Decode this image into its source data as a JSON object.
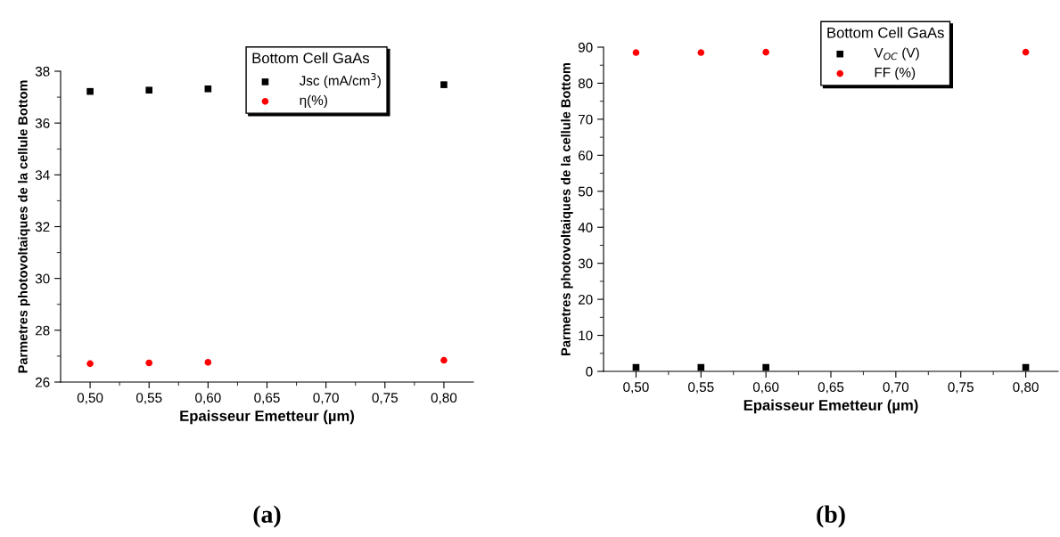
{
  "chart_data": [
    {
      "type": "scatter",
      "xlabel": "Epaisseur Emetteur (µm)",
      "ylabel": "Parmetres photovoltaiques de la cellule Bottom",
      "legend_title": "Bottom Cell GaAs",
      "legend": "top",
      "annotations": [
        "(a)"
      ],
      "x": [
        0.5,
        0.55,
        0.6,
        0.8
      ],
      "series": [
        {
          "name": "Jsc (mA/cm$^{3}$)",
          "color": "#000000",
          "marker": "square",
          "values": [
            37.22,
            37.27,
            37.32,
            37.48
          ]
        },
        {
          "name": "η(%)",
          "color": "#ff0000",
          "marker": "circle",
          "values": [
            26.71,
            26.74,
            26.76,
            26.84
          ]
        }
      ],
      "xlim": [
        0.475,
        0.825
      ],
      "xticks": [
        {
          "value": 0.5,
          "label": "0,50"
        },
        {
          "value": 0.525,
          "label": null
        },
        {
          "value": 0.55,
          "label": "0,55"
        },
        {
          "value": 0.575,
          "label": null
        },
        {
          "value": 0.6,
          "label": "0,60"
        },
        {
          "value": 0.625,
          "label": null
        },
        {
          "value": 0.65,
          "label": "0,65"
        },
        {
          "value": 0.675,
          "label": null
        },
        {
          "value": 0.7,
          "label": "0,70"
        },
        {
          "value": 0.725,
          "label": null
        },
        {
          "value": 0.75,
          "label": "0,75"
        },
        {
          "value": 0.775,
          "label": null
        },
        {
          "value": 0.8,
          "label": "0,80"
        }
      ],
      "ylim": [
        26,
        38
      ],
      "yticks": [
        26,
        {
          "value": 27,
          "label": null
        },
        28,
        {
          "value": 29,
          "label": null
        },
        30,
        {
          "value": 31,
          "label": null
        },
        32,
        {
          "value": 33,
          "label": null
        },
        34,
        {
          "value": 35,
          "label": null
        },
        36,
        {
          "value": 37,
          "label": null
        },
        38
      ]
    },
    {
      "type": "scatter",
      "xlabel": "Epaisseur Emetteur (µm)",
      "ylabel": "Parmetres photovoltaiques de la cellule Bottom",
      "legend_title": "Bottom Cell GaAs",
      "legend": "top",
      "annotations": [
        "(b)"
      ],
      "x": [
        0.5,
        0.55,
        0.6,
        0.8
      ],
      "series": [
        {
          "name": "V$_{OC}$ (V)",
          "color": "#000000",
          "marker": "square",
          "values": [
            1.1,
            1.1,
            1.1,
            1.1
          ]
        },
        {
          "name": "FF (%)",
          "color": "#ff0000",
          "marker": "circle",
          "values": [
            88.5,
            88.5,
            88.6,
            88.6
          ]
        }
      ],
      "xlim": [
        0.475,
        0.825
      ],
      "xticks": [
        {
          "value": 0.5,
          "label": "0,50"
        },
        {
          "value": 0.525,
          "label": null
        },
        {
          "value": 0.55,
          "label": "0,55"
        },
        {
          "value": 0.575,
          "label": null
        },
        {
          "value": 0.6,
          "label": "0,60"
        },
        {
          "value": 0.625,
          "label": null
        },
        {
          "value": 0.65,
          "label": "0,65"
        },
        {
          "value": 0.675,
          "label": null
        },
        {
          "value": 0.7,
          "label": "0,70"
        },
        {
          "value": 0.725,
          "label": null
        },
        {
          "value": 0.75,
          "label": "0,75"
        },
        {
          "value": 0.775,
          "label": null
        },
        {
          "value": 0.8,
          "label": "0,80"
        }
      ],
      "ylim": [
        0,
        90
      ],
      "yticks": [
        0,
        {
          "value": 5,
          "label": null
        },
        10,
        {
          "value": 15,
          "label": null
        },
        20,
        {
          "value": 25,
          "label": null
        },
        30,
        {
          "value": 35,
          "label": null
        },
        40,
        {
          "value": 45,
          "label": null
        },
        50,
        {
          "value": 55,
          "label": null
        },
        60,
        {
          "value": 65,
          "label": null
        },
        70,
        {
          "value": 75,
          "label": null
        },
        80,
        {
          "value": 85,
          "label": null
        },
        90
      ]
    }
  ]
}
